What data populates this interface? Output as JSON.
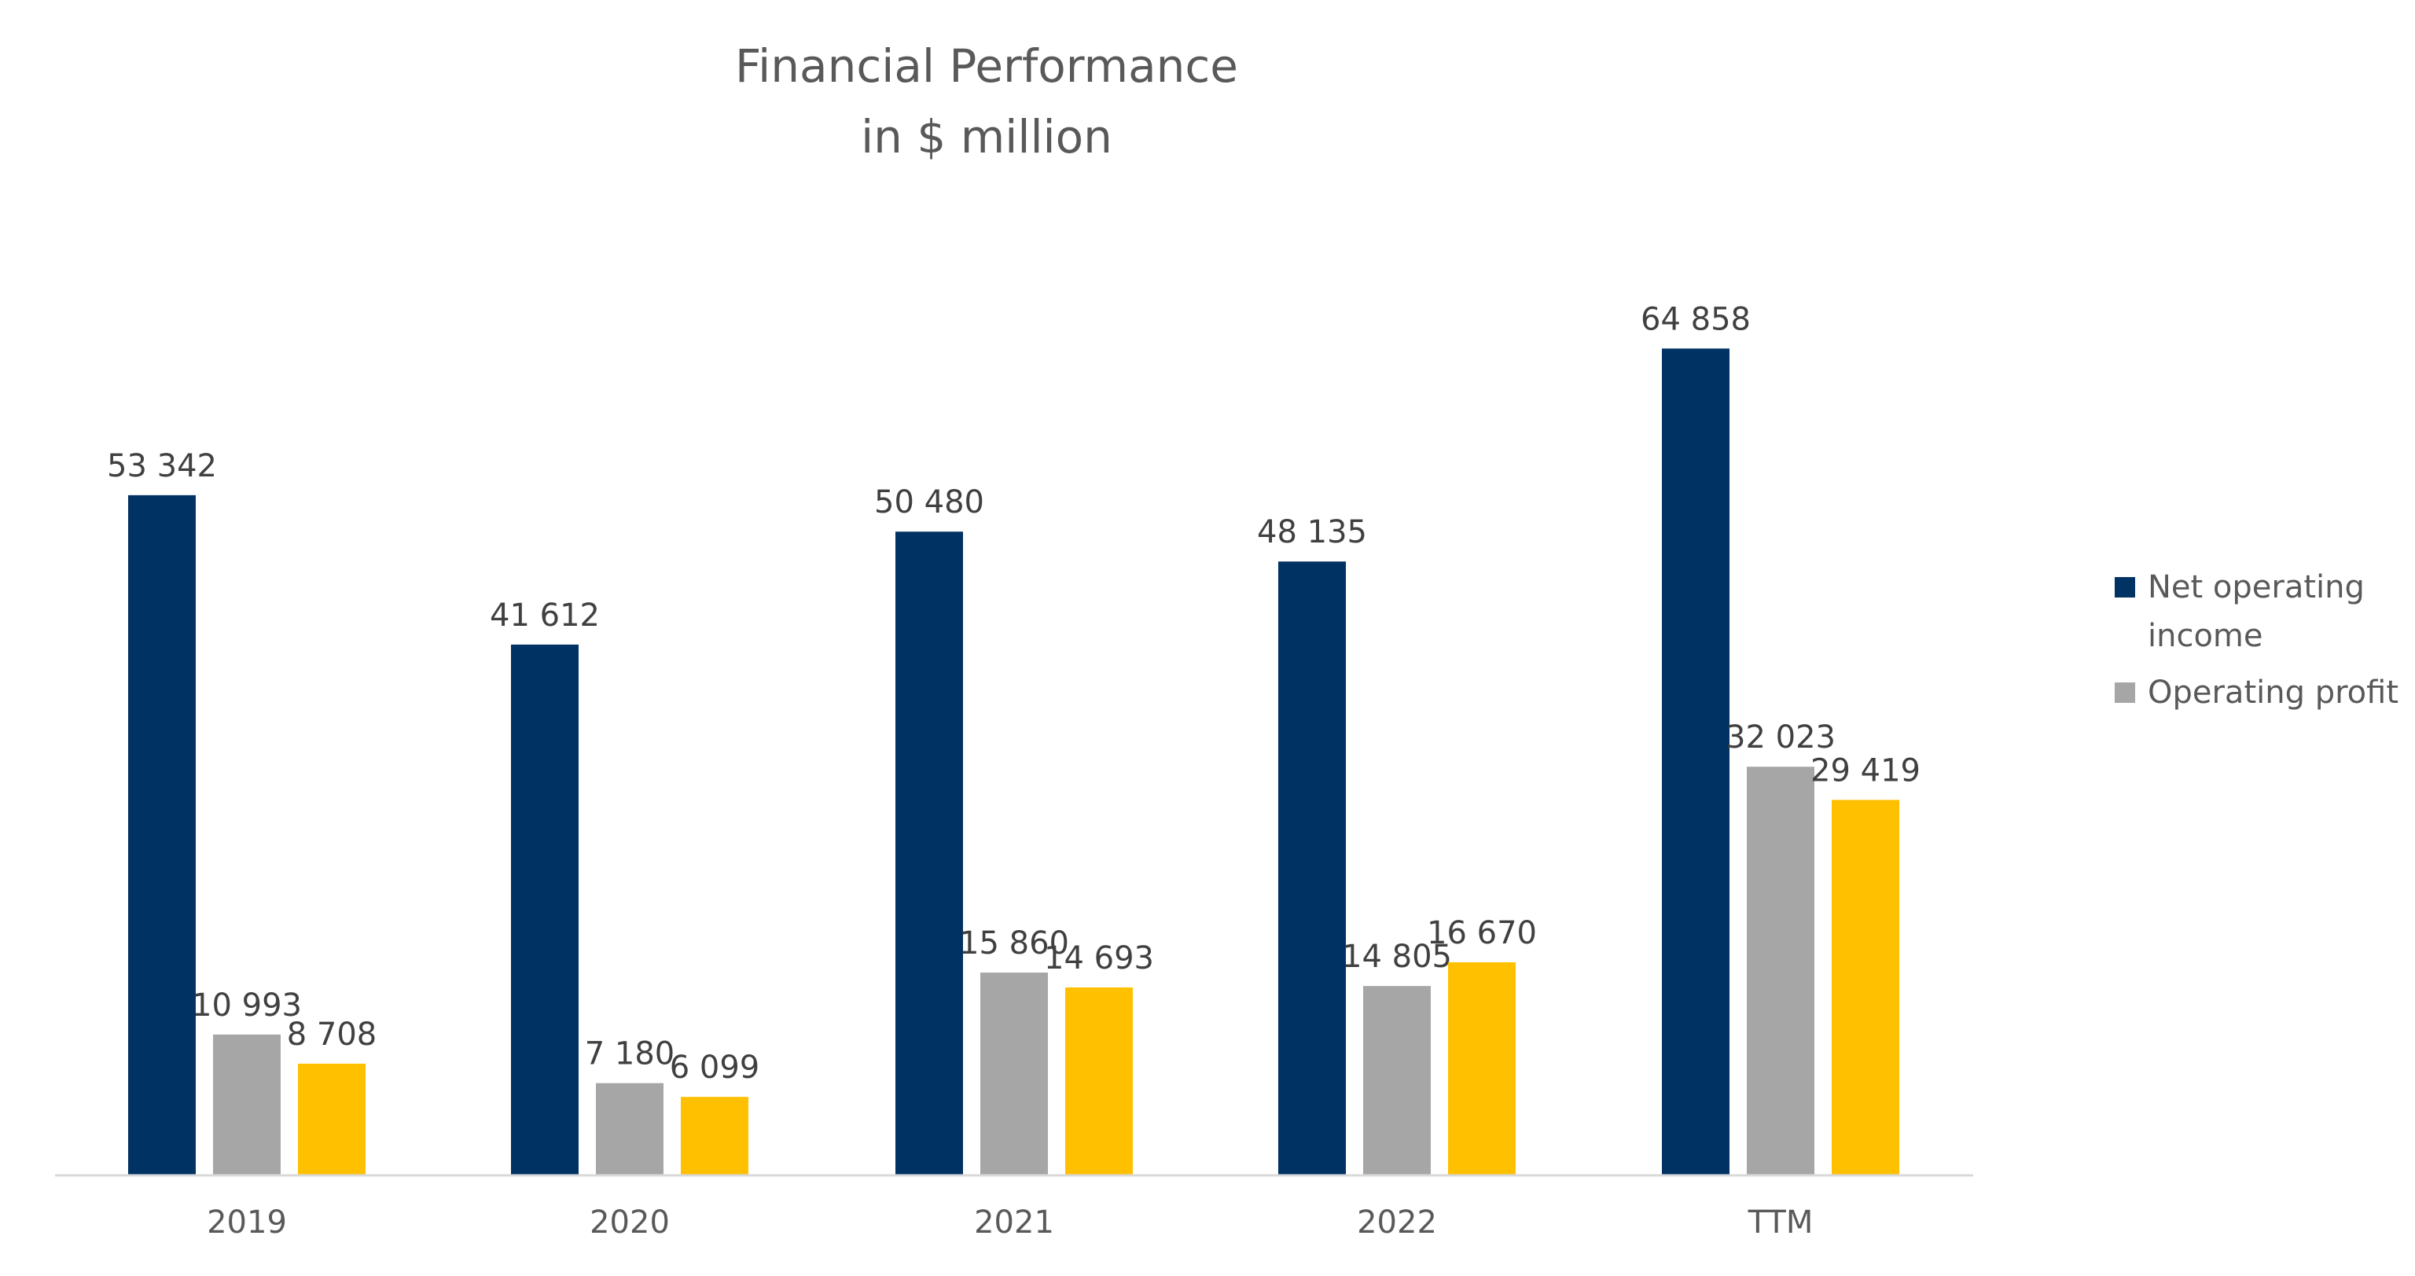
{
  "chart_data": {
    "type": "bar",
    "title": "Financial Performance",
    "subtitle": "in $ million",
    "categories": [
      "2019",
      "2020",
      "2021",
      "2022",
      "TTM"
    ],
    "series": [
      {
        "name": "Net operating income",
        "color": "#003263",
        "values": [
          53342,
          41612,
          50480,
          48135,
          64858
        ]
      },
      {
        "name": "Operating profit",
        "color": "#A6A6A6",
        "values": [
          10993,
          7180,
          15860,
          14805,
          32023
        ]
      },
      {
        "color": "#FFC000",
        "values": [
          8708,
          6099,
          14693,
          16670,
          29419
        ]
      }
    ],
    "data_labels": [
      [
        "53 342",
        "41 612",
        "50 480",
        "48 135",
        "64 858"
      ],
      [
        "10 993",
        "7 180",
        "15 860",
        "14 805",
        "32 023"
      ],
      [
        "8 708",
        "6 099",
        "14 693",
        "16 670",
        "29 419"
      ]
    ],
    "ylim": [
      0,
      70000
    ],
    "grid": false,
    "legend": "right",
    "colors": {
      "axis": "#D9D9D9",
      "text": "#595959",
      "label": "#404040"
    }
  }
}
